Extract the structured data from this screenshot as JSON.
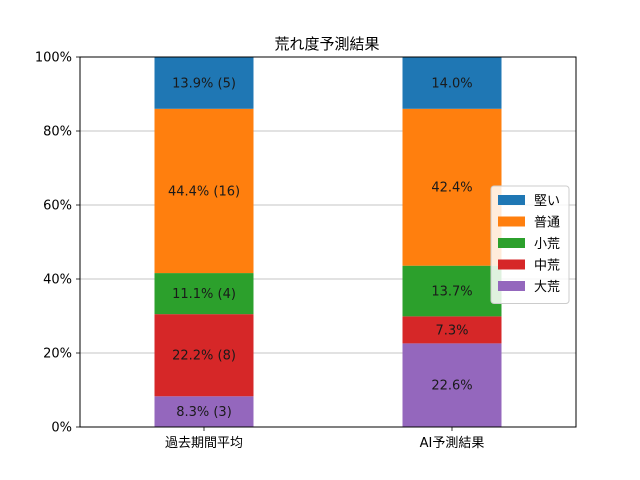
{
  "chart_data": {
    "type": "bar",
    "stacked": true,
    "title": "荒れ度予測結果",
    "xlabel": "",
    "ylabel": "",
    "categories": [
      "過去期間平均",
      "AI予測結果"
    ],
    "ylim": [
      0,
      100
    ],
    "yticks": [
      "0%",
      "20%",
      "40%",
      "60%",
      "80%",
      "100%"
    ],
    "grid": "y",
    "legend_position": "right",
    "series": [
      {
        "name": "大荒",
        "color": "#9467bd",
        "values": [
          8.3,
          22.6
        ],
        "labels": [
          "8.3% (3)",
          "22.6%"
        ]
      },
      {
        "name": "中荒",
        "color": "#d62728",
        "values": [
          22.2,
          7.3
        ],
        "labels": [
          "22.2% (8)",
          "7.3%"
        ]
      },
      {
        "name": "小荒",
        "color": "#2ca02c",
        "values": [
          11.1,
          13.7
        ],
        "labels": [
          "11.1% (4)",
          "13.7%"
        ]
      },
      {
        "name": "普通",
        "color": "#ff7f0e",
        "values": [
          44.4,
          42.4
        ],
        "labels": [
          "44.4% (16)",
          "42.4%"
        ]
      },
      {
        "name": "堅い",
        "color": "#1f77b4",
        "values": [
          13.9,
          14.0
        ],
        "labels": [
          "13.9% (5)",
          "14.0%"
        ]
      }
    ],
    "legend_order": [
      "堅い",
      "普通",
      "小荒",
      "中荒",
      "大荒"
    ]
  }
}
